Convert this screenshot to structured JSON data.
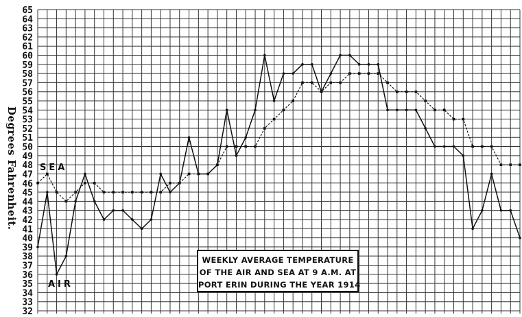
{
  "chart_data": {
    "type": "line",
    "title": [
      "WEEKLY AVERAGE TEMPERATURE",
      "OF THE AIR AND SEA AT 9 A.M. AT",
      "PORT ERIN DURING THE YEAR 1914"
    ],
    "ylabel": "Degrees Fahrenheit.",
    "xlabel": "",
    "ylim": [
      32,
      65
    ],
    "yticks": [
      65,
      64,
      63,
      62,
      61,
      60,
      59,
      58,
      57,
      56,
      55,
      54,
      53,
      52,
      51,
      50,
      49,
      48,
      47,
      46,
      45,
      44,
      43,
      42,
      41,
      40,
      39,
      38,
      37,
      36,
      35,
      34,
      33,
      32
    ],
    "grid": true,
    "series": [
      {
        "name": "SEA",
        "style": "dashed",
        "values": [
          46,
          47,
          45,
          44,
          45,
          46,
          46,
          45,
          45,
          45,
          45,
          45,
          45,
          45,
          46,
          46,
          47,
          47,
          47,
          48,
          50,
          50,
          50,
          50,
          52,
          53,
          54,
          55,
          57,
          57,
          56,
          57,
          57,
          58,
          58,
          58,
          58,
          57,
          56,
          56,
          56,
          55,
          54,
          54,
          53,
          53,
          50,
          50,
          50,
          48,
          48,
          48
        ]
      },
      {
        "name": "AIR",
        "style": "solid",
        "values": [
          39,
          45,
          36,
          38,
          44,
          47,
          44,
          42,
          43,
          43,
          42,
          41,
          42,
          47,
          45,
          46,
          51,
          47,
          47,
          48,
          54,
          49,
          51,
          54,
          60,
          55,
          58,
          58,
          59,
          59,
          56,
          58,
          60,
          60,
          59,
          59,
          59,
          54,
          54,
          54,
          54,
          52,
          50,
          50,
          50,
          49,
          41,
          43,
          47,
          43,
          43,
          40
        ]
      }
    ]
  }
}
